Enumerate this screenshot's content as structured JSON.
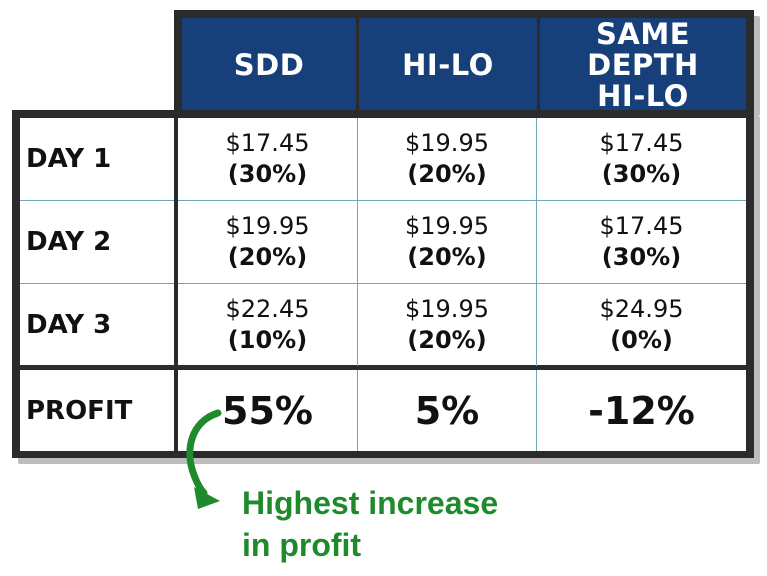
{
  "header": {
    "col1": "SDD",
    "col2": "HI-LO",
    "col3_line1": "SAME DEPTH",
    "col3_line2": "HI-LO"
  },
  "rows": [
    {
      "label": "DAY 1",
      "sdd": {
        "price": "$17.45",
        "pct": "(30%)"
      },
      "hilo": {
        "price": "$19.95",
        "pct": "(20%)"
      },
      "same": {
        "price": "$17.45",
        "pct": "(30%)"
      }
    },
    {
      "label": "DAY 2",
      "sdd": {
        "price": "$19.95",
        "pct": "(20%)"
      },
      "hilo": {
        "price": "$19.95",
        "pct": "(20%)"
      },
      "same": {
        "price": "$17.45",
        "pct": "(30%)"
      }
    },
    {
      "label": "DAY 3",
      "sdd": {
        "price": "$22.45",
        "pct": "(10%)"
      },
      "hilo": {
        "price": "$19.95",
        "pct": "(20%)"
      },
      "same": {
        "price": "$24.95",
        "pct": "(0%)"
      }
    }
  ],
  "profit": {
    "label": "PROFIT",
    "sdd": "55%",
    "hilo": "5%",
    "same": "-12%"
  },
  "note": {
    "line1": "Highest increase",
    "line2": "in profit"
  },
  "colors": {
    "header_bg": "#173f7a",
    "border": "#2b2b2b",
    "gridline": "#6fa9b0",
    "note": "#1f8a2c"
  },
  "icons": {
    "arrow": "curved-arrow-icon"
  }
}
